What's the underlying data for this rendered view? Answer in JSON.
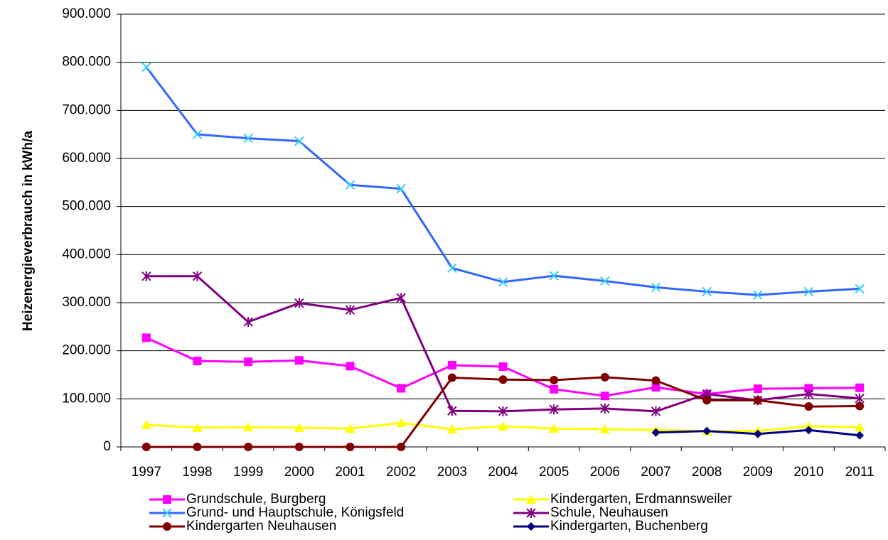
{
  "chart_data": {
    "type": "line",
    "ylabel": "Heizenergieverbrauch in kWh/a",
    "categories": [
      "1997",
      "1998",
      "1999",
      "2000",
      "2001",
      "2002",
      "2003",
      "2004",
      "2005",
      "2006",
      "2007",
      "2008",
      "2009",
      "2010",
      "2011"
    ],
    "ylim": [
      0,
      900000
    ],
    "yticks": [
      0,
      {
        "value": 100000,
        "label": "100.000"
      },
      {
        "value": 200000,
        "label": "200.000"
      },
      {
        "value": 300000,
        "label": "300.000"
      },
      {
        "value": 400000,
        "label": "400.000"
      },
      {
        "value": 500000,
        "label": "500.000"
      },
      {
        "value": 600000,
        "label": "600.000"
      },
      {
        "value": 700000,
        "label": "700.000"
      },
      {
        "value": 800000,
        "label": "800.000"
      },
      {
        "value": 900000,
        "label": "900.000"
      }
    ],
    "grid": true,
    "legend": "bottom",
    "series": [
      {
        "name": "Grundschule, Burgberg",
        "color": "#ff00ff",
        "marker": "square",
        "marker_color": "#ff00ff",
        "values": [
          227000,
          178800,
          177000,
          180000,
          168000,
          122000,
          170000,
          167000,
          120000,
          106000,
          124000,
          110000,
          121000,
          122000,
          123000
        ]
      },
      {
        "name": "Kindergarten, Erdmannsweiler",
        "color": "#ffff00",
        "marker": "triangle",
        "marker_color": "#ffff00",
        "values": [
          46000,
          40000,
          41000,
          40000,
          38000,
          50000,
          37000,
          43000,
          38000,
          37000,
          35000,
          33000,
          33000,
          43000,
          41000
        ]
      },
      {
        "name": "Grund- und Hauptschule, Königsfeld",
        "color": "#3366ff",
        "marker": "x",
        "marker_color": "#33ccff",
        "values": [
          790000,
          650000,
          642000,
          636000,
          545000,
          537000,
          372000,
          343000,
          356000,
          345000,
          332000,
          323000,
          316000,
          323000,
          329000
        ]
      },
      {
        "name": "Schule, Neuhausen",
        "color": "#800080",
        "marker": "star",
        "marker_color": "#800080",
        "values": [
          355000,
          355000,
          260000,
          299000,
          285000,
          310000,
          75000,
          74000,
          78000,
          80000,
          74000,
          110000,
          97000,
          110000,
          101000
        ]
      },
      {
        "name": "Kindergarten Neuhausen",
        "color": "#800000",
        "marker": "circle",
        "marker_color": "#800000",
        "values": [
          0,
          0,
          0,
          0,
          0,
          0,
          144000,
          140000,
          139000,
          145000,
          138000,
          97000,
          97000,
          84000,
          85000
        ]
      },
      {
        "name": "Kindergarten, Buchenberg",
        "color": "#000080",
        "marker": "diamond",
        "marker_color": "#000080",
        "values": [
          null,
          null,
          null,
          null,
          null,
          null,
          null,
          null,
          null,
          null,
          30000,
          33000,
          27000,
          35000,
          24000
        ]
      }
    ]
  }
}
